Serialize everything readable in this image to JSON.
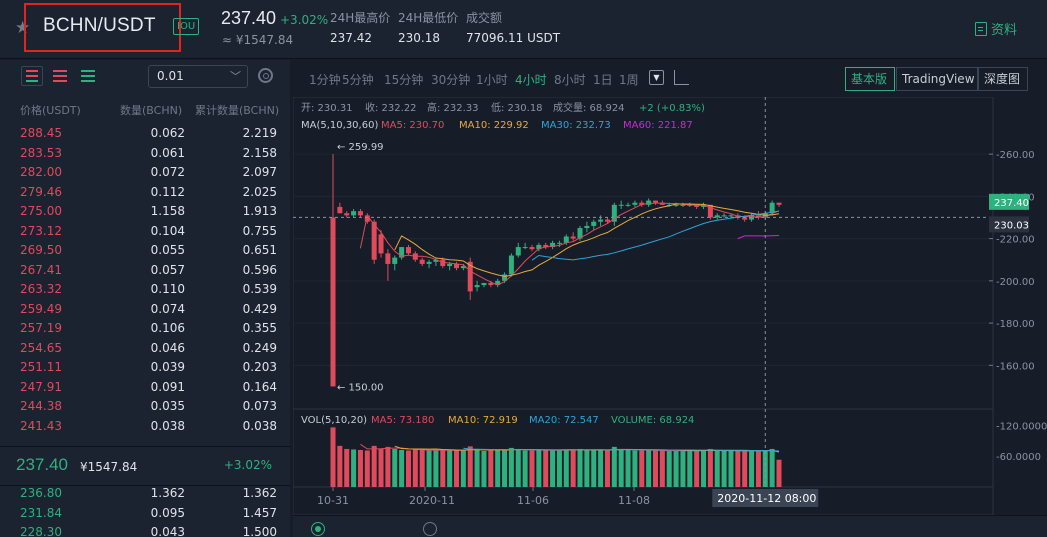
{
  "header": {
    "pair": "BCHN/USDT",
    "tag": "IOU",
    "last_price": "237.40",
    "change": "+3.02%",
    "cny_price": "≈ ¥1547.84",
    "stats": [
      {
        "label": "24H最高价",
        "value": "237.42"
      },
      {
        "label": "24H最低价",
        "value": "230.18"
      },
      {
        "label": "成交额",
        "value": "77096.11 USDT"
      }
    ],
    "docs_label": "资料"
  },
  "orderbook": {
    "precision": "0.01",
    "headers": [
      "价格(USDT)",
      "数量(BCHN)",
      "累计数量(BCHN)"
    ],
    "asks": [
      [
        "288.45",
        "0.062",
        "2.219"
      ],
      [
        "283.53",
        "0.061",
        "2.158"
      ],
      [
        "282.00",
        "0.072",
        "2.097"
      ],
      [
        "279.46",
        "0.112",
        "2.025"
      ],
      [
        "275.00",
        "1.158",
        "1.913"
      ],
      [
        "273.12",
        "0.104",
        "0.755"
      ],
      [
        "269.50",
        "0.055",
        "0.651"
      ],
      [
        "267.41",
        "0.057",
        "0.596"
      ],
      [
        "263.32",
        "0.110",
        "0.539"
      ],
      [
        "259.49",
        "0.074",
        "0.429"
      ],
      [
        "257.19",
        "0.106",
        "0.355"
      ],
      [
        "254.65",
        "0.046",
        "0.249"
      ],
      [
        "251.11",
        "0.039",
        "0.203"
      ],
      [
        "247.91",
        "0.091",
        "0.164"
      ],
      [
        "244.38",
        "0.035",
        "0.073"
      ],
      [
        "241.43",
        "0.038",
        "0.038"
      ]
    ],
    "mid": {
      "price": "237.40",
      "cny": "¥1547.84",
      "change": "+3.02%"
    },
    "bids": [
      [
        "236.80",
        "1.362",
        "1.362"
      ],
      [
        "231.84",
        "0.095",
        "1.457"
      ],
      [
        "228.30",
        "0.043",
        "1.500"
      ]
    ]
  },
  "chart": {
    "timeframes": [
      "1分钟",
      "5分钟",
      "15分钟",
      "30分钟",
      "1小时",
      "4小时",
      "8小时",
      "1日",
      "1周"
    ],
    "active_timeframe": "4小时",
    "modes": [
      "基本版",
      "TradingView",
      "深度图"
    ],
    "active_mode": "基本版",
    "ohlc_line": {
      "open": "开: 230.31",
      "close": "收: 232.22",
      "high": "高: 232.33",
      "low": "低: 230.18",
      "volume": "成交量: 68.924",
      "change": "+2 (+0.83%)"
    },
    "ma_line": {
      "label": "MA(5,10,30,60)",
      "ma5": "MA5: 230.70",
      "ma10": "MA10: 229.92",
      "ma30": "MA30: 232.73",
      "ma60": "MA60: 221.87"
    },
    "vol_line": {
      "label": "VOL(5,10,20)",
      "ma5": "MA5: 73.180",
      "ma10": "MA10: 72.919",
      "ma20": "MA20: 72.547",
      "volume": "VOLUME: 68.924"
    },
    "price_ticks": [
      "260.00",
      "240.00",
      "220.00",
      "200.00",
      "180.00",
      "160.00"
    ],
    "vol_ticks": [
      "120.0000",
      "60.0000"
    ],
    "x_ticks": [
      "10-31",
      "2020-11",
      "11-06",
      "11-08"
    ],
    "cursor_time": "2020-11-12 08:00",
    "last_label": "237.40",
    "cursor_label": "230.03",
    "max_label": "259.99",
    "min_label": "150.00",
    "colors": {
      "up": "#2fb07f",
      "down": "#e04a5b",
      "ma5": "#e04a5b",
      "ma10": "#e8a93a",
      "ma30": "#2ea3d8",
      "ma60": "#c42ecd"
    }
  },
  "chart_data": {
    "type": "candlestick",
    "ylim": [
      145,
      270
    ],
    "y_ticks": [
      160,
      180,
      200,
      220,
      240,
      260
    ],
    "candles": [
      [
        230,
        260,
        150,
        150,
        116
      ],
      [
        235,
        237,
        232,
        232,
        80
      ],
      [
        232,
        233,
        230,
        231,
        74
      ],
      [
        231,
        234,
        230,
        233,
        73
      ],
      [
        233,
        234,
        230,
        231,
        72
      ],
      [
        231,
        232,
        227,
        228,
        71
      ],
      [
        228,
        229,
        208,
        210,
        80
      ],
      [
        222,
        224,
        211,
        213,
        75
      ],
      [
        213,
        215,
        200,
        208,
        78
      ],
      [
        208,
        212,
        205,
        211,
        74
      ],
      [
        211,
        216,
        210,
        216,
        72
      ],
      [
        216,
        217,
        212,
        213,
        71
      ],
      [
        213,
        214,
        209,
        210,
        73
      ],
      [
        210,
        211,
        207,
        208,
        72
      ],
      [
        208,
        210,
        206,
        209,
        71
      ],
      [
        209,
        211,
        207,
        210,
        72
      ],
      [
        210,
        211,
        206,
        207,
        71
      ],
      [
        207,
        209,
        205,
        208,
        72
      ],
      [
        208,
        209,
        205,
        206,
        72
      ],
      [
        206,
        208,
        205,
        207,
        71
      ],
      [
        209,
        211,
        191,
        195,
        79
      ],
      [
        197,
        200,
        195,
        198,
        72
      ],
      [
        198,
        199,
        197,
        199,
        70
      ],
      [
        199,
        200,
        197,
        198,
        71
      ],
      [
        198,
        201,
        197,
        200,
        72
      ],
      [
        200,
        204,
        199,
        203,
        72
      ],
      [
        203,
        213,
        202,
        212,
        76
      ],
      [
        212,
        218,
        211,
        216,
        74
      ],
      [
        216,
        218,
        215,
        216,
        71
      ],
      [
        216,
        217,
        214,
        215,
        71
      ],
      [
        215,
        218,
        214,
        217,
        72
      ],
      [
        217,
        218,
        215,
        216,
        72
      ],
      [
        216,
        219,
        215,
        218,
        71
      ],
      [
        218,
        219,
        216,
        218,
        71
      ],
      [
        218,
        222,
        217,
        221,
        73
      ],
      [
        221,
        223,
        219,
        220,
        72
      ],
      [
        220,
        226,
        219,
        225,
        74
      ],
      [
        225,
        228,
        223,
        226,
        72
      ],
      [
        226,
        229,
        224,
        228,
        72
      ],
      [
        228,
        231,
        226,
        229,
        72
      ],
      [
        229,
        230,
        227,
        228,
        71
      ],
      [
        228,
        237,
        226,
        236,
        78
      ],
      [
        236,
        238,
        234,
        236,
        73
      ],
      [
        236,
        237,
        235,
        236,
        72
      ],
      [
        236,
        238,
        235,
        237,
        71
      ],
      [
        237,
        238,
        235,
        236,
        71
      ],
      [
        236,
        239,
        235,
        238,
        72
      ],
      [
        238,
        238,
        236,
        237,
        71
      ],
      [
        237,
        238,
        236,
        236,
        70
      ],
      [
        236,
        237,
        235,
        236,
        70
      ],
      [
        236,
        237,
        235,
        236,
        71
      ],
      [
        236,
        237,
        235,
        236,
        70
      ],
      [
        236,
        237,
        235,
        236,
        71
      ],
      [
        236,
        236,
        234,
        235,
        70
      ],
      [
        235,
        237,
        234,
        236,
        72
      ],
      [
        236,
        236,
        229,
        230,
        74
      ],
      [
        230,
        232,
        229,
        231,
        70
      ],
      [
        231,
        232,
        230,
        231,
        70
      ],
      [
        231,
        232,
        230,
        231,
        70
      ],
      [
        231,
        232,
        229,
        230,
        70
      ],
      [
        230,
        231,
        228,
        229,
        70
      ],
      [
        229,
        232,
        228,
        231,
        70
      ],
      [
        231,
        233,
        229,
        230,
        71
      ],
      [
        230,
        233,
        229,
        232,
        70
      ],
      [
        232,
        238,
        231,
        237,
        74
      ],
      [
        237,
        237,
        235,
        236,
        53
      ]
    ]
  }
}
